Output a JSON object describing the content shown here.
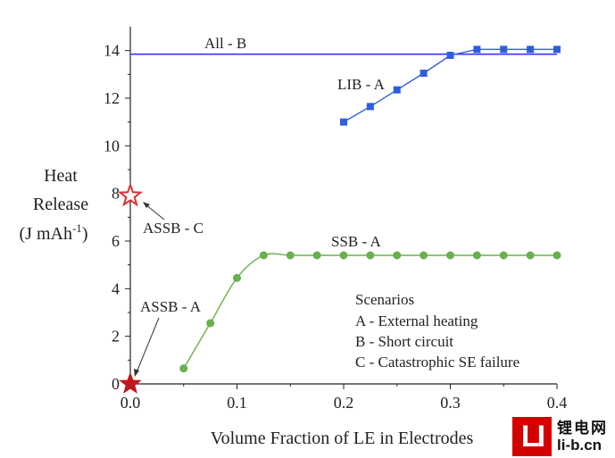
{
  "chart_data": {
    "type": "line",
    "xlabel": "Volume Fraction of LE in Electrodes",
    "ylabel_lines": [
      "Heat",
      "Release",
      "(J mAh",
      "-1",
      ")"
    ],
    "xlim": [
      0.0,
      0.4
    ],
    "ylim": [
      0,
      15
    ],
    "xticks": [
      "0.0",
      "0.1",
      "0.2",
      "0.3",
      "0.4"
    ],
    "yticks": [
      "0",
      "2",
      "4",
      "6",
      "8",
      "10",
      "12",
      "14"
    ],
    "grid": false,
    "series": [
      {
        "name": "All - B",
        "color": "#3333ff",
        "marker": "none",
        "x": [
          0.0,
          0.4
        ],
        "y": [
          13.85,
          13.85
        ]
      },
      {
        "name": "LIB - A",
        "color": "#2f5de0",
        "marker": "square",
        "x": [
          0.2,
          0.225,
          0.25,
          0.275,
          0.3,
          0.325,
          0.35,
          0.375,
          0.4
        ],
        "y": [
          11.0,
          11.65,
          12.35,
          13.05,
          13.8,
          14.05,
          14.05,
          14.05,
          14.05
        ]
      },
      {
        "name": "SSB - A",
        "color": "#6ab04c",
        "marker": "circle",
        "x": [
          0.05,
          0.075,
          0.1,
          0.125,
          0.15,
          0.175,
          0.2,
          0.225,
          0.25,
          0.275,
          0.3,
          0.325,
          0.35,
          0.375,
          0.4
        ],
        "y": [
          0.65,
          2.55,
          4.45,
          5.4,
          5.4,
          5.4,
          5.4,
          5.4,
          5.4,
          5.4,
          5.4,
          5.4,
          5.4,
          5.4,
          5.4
        ]
      }
    ],
    "points": [
      {
        "name": "ASSB - C",
        "x": 0.0,
        "y": 7.9,
        "marker": "hollow-star",
        "color": "#d93030"
      },
      {
        "name": "ASSB - A",
        "x": 0.0,
        "y": 0.0,
        "marker": "filled-star",
        "color": "#c0181c"
      }
    ],
    "annotations": {
      "all_b": "All - B",
      "lib_a": "LIB - A",
      "ssb_a": "SSB - A",
      "assb_c": "ASSB - C",
      "assb_a": "ASSB - A"
    },
    "scenarios": {
      "title": "Scenarios",
      "items": [
        "A - External heating",
        "B - Short circuit",
        "C - Catastrophic SE failure"
      ]
    }
  },
  "watermark": {
    "logo_text": "LI",
    "cn_text": "锂电网",
    "url_text": "li-b.cn"
  }
}
